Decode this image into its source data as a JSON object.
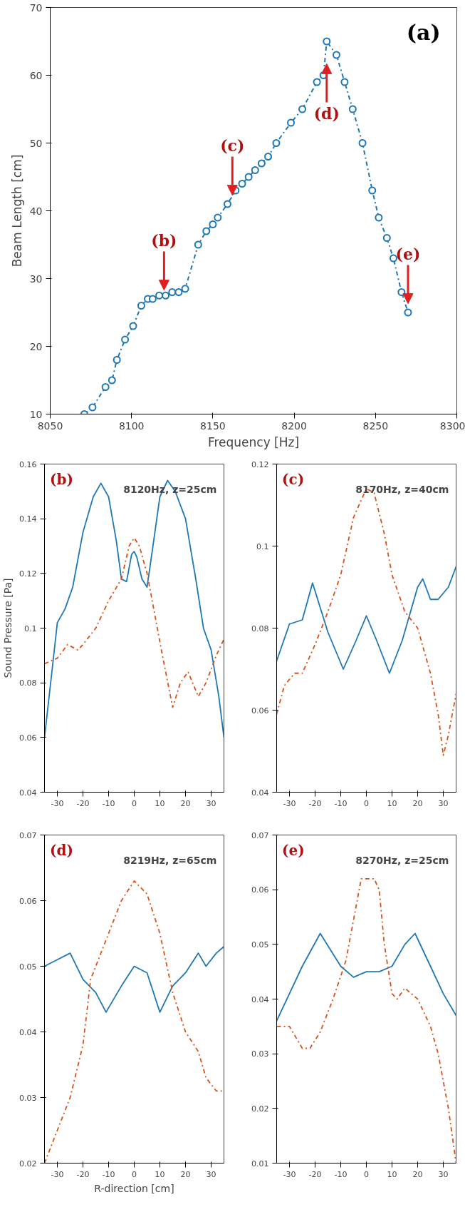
{
  "chart_data": [
    {
      "type": "line",
      "xlabel": "Frequency [Hz]",
      "ylabel": "Beam Length [cm]",
      "xlim": [
        8050,
        8300
      ],
      "ylim": [
        10,
        70
      ],
      "xticks": [
        8050,
        8100,
        8150,
        8200,
        8250,
        8300
      ],
      "yticks": [
        10,
        20,
        30,
        40,
        50,
        60,
        70
      ],
      "grid": false,
      "marker": "circle",
      "line_style": "dashdot",
      "x": [
        8071,
        8076,
        8084,
        8088,
        8091,
        8096,
        8101,
        8106,
        8110,
        8113,
        8117,
        8121,
        8125,
        8129,
        8133,
        8141,
        8146,
        8150,
        8153,
        8159,
        8164,
        8168,
        8172,
        8176,
        8180,
        8184,
        8189,
        8198,
        8205,
        8214,
        8218,
        8220,
        8226,
        8231,
        8236,
        8242,
        8248,
        8252,
        8257,
        8261,
        8266,
        8270
      ],
      "series": [
        {
          "color": "#1f77b4",
          "values": [
            10,
            11,
            14,
            15,
            18,
            21,
            23,
            26,
            27,
            27,
            27.5,
            27.5,
            28,
            28,
            28.5,
            35,
            37,
            38,
            39,
            41,
            43,
            44,
            45,
            46,
            47,
            48,
            50,
            53,
            55,
            59,
            60,
            65,
            63,
            59,
            55,
            50,
            43,
            39,
            36,
            33,
            28,
            25
          ]
        }
      ],
      "annotations": [
        "(a)",
        {
          "text": "(b)",
          "x": 8120,
          "y": 28
        },
        {
          "text": "(c)",
          "x": 8162,
          "y": 42
        },
        {
          "text": "(d)",
          "x": 8220,
          "y": 62
        },
        {
          "text": "(e)",
          "x": 8270,
          "y": 26
        }
      ]
    },
    {
      "type": "line",
      "title": "8120Hz, z=25cm",
      "ylabel": "Sound Pressure [Pa]",
      "xlim": [
        -35,
        35
      ],
      "ylim": [
        0.04,
        0.16
      ],
      "xticks": [
        -30,
        -20,
        -10,
        0,
        10,
        20,
        30
      ],
      "yticks": [
        0.04,
        0.06,
        0.08,
        0.1,
        0.12,
        0.14,
        0.16
      ],
      "grid": false,
      "annotations": [
        "(b)"
      ],
      "series": [
        {
          "color": "#1f77b4",
          "line_style": "solid",
          "x": [
            -35,
            -32,
            -30,
            -27,
            -24,
            -20,
            -16,
            -13,
            -10,
            -7,
            -5,
            -3,
            -1,
            0,
            1,
            3,
            5,
            7,
            10,
            13,
            16,
            20,
            24,
            27,
            30,
            33,
            35
          ],
          "values": [
            0.06,
            0.085,
            0.102,
            0.107,
            0.115,
            0.135,
            0.148,
            0.153,
            0.148,
            0.132,
            0.118,
            0.117,
            0.127,
            0.128,
            0.126,
            0.118,
            0.115,
            0.128,
            0.148,
            0.154,
            0.15,
            0.14,
            0.118,
            0.1,
            0.092,
            0.075,
            0.06
          ]
        },
        {
          "color": "#d95319",
          "line_style": "dashdot",
          "x": [
            -35,
            -30,
            -26,
            -22,
            -20,
            -15,
            -10,
            -5,
            -2,
            0,
            2,
            5,
            8,
            11,
            15,
            18,
            21,
            25,
            28,
            32,
            35
          ],
          "values": [
            0.087,
            0.089,
            0.094,
            0.092,
            0.094,
            0.1,
            0.11,
            0.118,
            0.13,
            0.133,
            0.13,
            0.12,
            0.105,
            0.09,
            0.071,
            0.08,
            0.084,
            0.075,
            0.08,
            0.09,
            0.096
          ]
        }
      ]
    },
    {
      "type": "line",
      "title": "8170Hz, z=40cm",
      "xlim": [
        -35,
        35
      ],
      "ylim": [
        0.04,
        0.12
      ],
      "xticks": [
        -30,
        -20,
        -10,
        0,
        10,
        20,
        30
      ],
      "yticks": [
        0.04,
        0.06,
        0.08,
        0.1,
        0.12
      ],
      "grid": false,
      "annotations": [
        "(c)"
      ],
      "series": [
        {
          "color": "#1f77b4",
          "line_style": "solid",
          "x": [
            -35,
            -30,
            -25,
            -21,
            -15,
            -9,
            -4,
            0,
            4,
            9,
            14,
            20,
            22,
            25,
            28,
            32,
            35
          ],
          "values": [
            0.072,
            0.081,
            0.082,
            0.091,
            0.079,
            0.07,
            0.077,
            0.083,
            0.077,
            0.069,
            0.077,
            0.09,
            0.092,
            0.087,
            0.087,
            0.09,
            0.095
          ]
        },
        {
          "color": "#d95319",
          "line_style": "dashdot",
          "x": [
            -35,
            -32,
            -28,
            -25,
            -20,
            -15,
            -10,
            -5,
            0,
            3,
            7,
            10,
            15,
            20,
            25,
            28,
            30,
            32,
            35
          ],
          "values": [
            0.059,
            0.066,
            0.069,
            0.069,
            0.076,
            0.084,
            0.093,
            0.107,
            0.114,
            0.113,
            0.103,
            0.093,
            0.084,
            0.08,
            0.069,
            0.059,
            0.049,
            0.054,
            0.064
          ]
        }
      ]
    },
    {
      "type": "line",
      "title": "8219Hz, z=65cm",
      "xlabel": "R-direction [cm]",
      "xlim": [
        -35,
        35
      ],
      "ylim": [
        0.02,
        0.07
      ],
      "xticks": [
        -30,
        -20,
        -10,
        0,
        10,
        20,
        30
      ],
      "yticks": [
        0.02,
        0.03,
        0.04,
        0.05,
        0.06,
        0.07
      ],
      "grid": false,
      "annotations": [
        "(d)"
      ],
      "series": [
        {
          "color": "#1f77b4",
          "line_style": "solid",
          "x": [
            -35,
            -30,
            -25,
            -20,
            -15,
            -11,
            -5,
            0,
            5,
            10,
            15,
            20,
            25,
            28,
            32,
            35
          ],
          "values": [
            0.05,
            0.051,
            0.052,
            0.048,
            0.046,
            0.043,
            0.047,
            0.05,
            0.049,
            0.043,
            0.047,
            0.049,
            0.052,
            0.05,
            0.052,
            0.053
          ]
        },
        {
          "color": "#d95319",
          "line_style": "dashdot",
          "x": [
            -35,
            -30,
            -25,
            -20,
            -17,
            -10,
            -5,
            0,
            5,
            10,
            15,
            20,
            25,
            28,
            32,
            35
          ],
          "values": [
            0.02,
            0.025,
            0.03,
            0.038,
            0.048,
            0.055,
            0.06,
            0.063,
            0.061,
            0.055,
            0.046,
            0.04,
            0.037,
            0.033,
            0.031,
            0.031
          ]
        }
      ]
    },
    {
      "type": "line",
      "title": "8270Hz, z=25cm",
      "xlim": [
        -35,
        35
      ],
      "ylim": [
        0.01,
        0.07
      ],
      "xticks": [
        -30,
        -20,
        -10,
        0,
        10,
        20,
        30
      ],
      "yticks": [
        0.01,
        0.02,
        0.03,
        0.04,
        0.05,
        0.06,
        0.07
      ],
      "grid": false,
      "annotations": [
        "(e)"
      ],
      "series": [
        {
          "color": "#1f77b4",
          "line_style": "solid",
          "x": [
            -35,
            -30,
            -25,
            -18,
            -10,
            -5,
            0,
            5,
            10,
            15,
            19,
            25,
            30,
            35
          ],
          "values": [
            0.036,
            0.041,
            0.046,
            0.052,
            0.046,
            0.044,
            0.045,
            0.045,
            0.046,
            0.05,
            0.052,
            0.046,
            0.041,
            0.037
          ]
        },
        {
          "color": "#d95319",
          "line_style": "dashdot",
          "x": [
            -35,
            -30,
            -25,
            -22,
            -18,
            -13,
            -8,
            -4,
            -2,
            0,
            3,
            5,
            7,
            10,
            12,
            15,
            20,
            25,
            28,
            32,
            35
          ],
          "values": [
            0.035,
            0.035,
            0.031,
            0.031,
            0.034,
            0.04,
            0.047,
            0.057,
            0.062,
            0.062,
            0.062,
            0.06,
            0.05,
            0.041,
            0.04,
            0.042,
            0.04,
            0.035,
            0.03,
            0.02,
            0.01
          ]
        }
      ]
    }
  ]
}
